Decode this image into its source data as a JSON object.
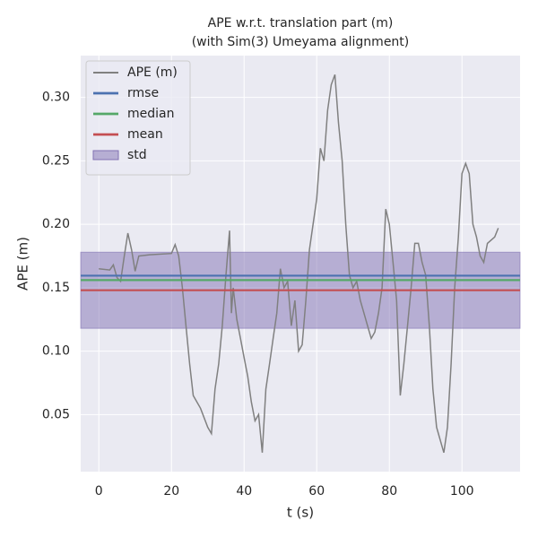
{
  "chart_data": {
    "type": "line",
    "title": [
      "APE w.r.t. translation part (m)",
      "(with Sim(3) Umeyama alignment)"
    ],
    "x_label": "t (s)",
    "y_label": "APE (m)",
    "xlim": [
      -5,
      116
    ],
    "ylim": [
      0.005,
      0.333
    ],
    "xticks": [
      0,
      20,
      40,
      60,
      80,
      100
    ],
    "yticks": [
      0.05,
      {
        "value": 0.1,
        "label": "0.10"
      },
      0.15,
      {
        "value": 0.2,
        "label": "0.20"
      },
      0.25,
      {
        "value": 0.3,
        "label": "0.30"
      }
    ],
    "grid": true,
    "legend": "upper left",
    "series": [
      {
        "name": "APE (m)",
        "color": "#808080",
        "x": [
          0,
          3,
          4,
          5,
          6,
          7,
          8,
          9,
          10,
          11,
          14,
          20,
          21,
          22,
          23,
          24,
          25,
          26,
          28,
          30,
          31,
          32,
          33,
          34,
          35,
          36,
          36.5,
          37,
          38,
          39,
          40,
          41,
          42,
          43,
          44,
          45,
          46,
          47,
          48,
          49,
          50,
          51,
          52,
          53,
          54,
          55,
          56,
          57,
          58,
          60,
          61,
          62,
          63,
          64,
          65,
          66,
          67,
          68,
          69,
          70,
          71,
          72,
          73,
          74,
          75,
          76,
          77,
          78,
          79,
          80,
          81,
          82,
          83,
          84,
          85,
          86,
          87,
          88,
          89,
          90,
          91,
          92,
          93,
          94,
          95,
          96,
          97,
          98,
          99,
          100,
          101,
          102,
          103,
          104,
          105,
          106,
          107,
          109,
          110
        ],
        "values": [
          0.165,
          0.164,
          0.168,
          0.158,
          0.155,
          0.175,
          0.193,
          0.18,
          0.163,
          0.175,
          0.176,
          0.177,
          0.184,
          0.175,
          0.15,
          0.12,
          0.09,
          0.065,
          0.055,
          0.04,
          0.035,
          0.07,
          0.09,
          0.12,
          0.16,
          0.195,
          0.13,
          0.15,
          0.125,
          0.11,
          0.095,
          0.08,
          0.06,
          0.045,
          0.05,
          0.02,
          0.07,
          0.09,
          0.11,
          0.13,
          0.165,
          0.15,
          0.155,
          0.12,
          0.14,
          0.1,
          0.105,
          0.14,
          0.18,
          0.22,
          0.26,
          0.25,
          0.29,
          0.31,
          0.318,
          0.28,
          0.25,
          0.2,
          0.16,
          0.15,
          0.155,
          0.14,
          0.13,
          0.12,
          0.11,
          0.115,
          0.13,
          0.15,
          0.212,
          0.2,
          0.17,
          0.14,
          0.065,
          0.09,
          0.12,
          0.15,
          0.185,
          0.185,
          0.17,
          0.16,
          0.12,
          0.07,
          0.04,
          0.03,
          0.02,
          0.04,
          0.09,
          0.15,
          0.19,
          0.24,
          0.248,
          0.24,
          0.2,
          0.19,
          0.175,
          0.17,
          0.185,
          0.19,
          0.197
        ]
      }
    ],
    "hlines": [
      {
        "name": "rmse",
        "color": "#4c72b0",
        "value": 0.1595
      },
      {
        "name": "median",
        "color": "#55a868",
        "value": 0.156
      },
      {
        "name": "mean",
        "color": "#c44e52",
        "value": 0.148
      }
    ],
    "band": {
      "name": "std",
      "color": "#8172b3",
      "value": 0.03
    }
  }
}
